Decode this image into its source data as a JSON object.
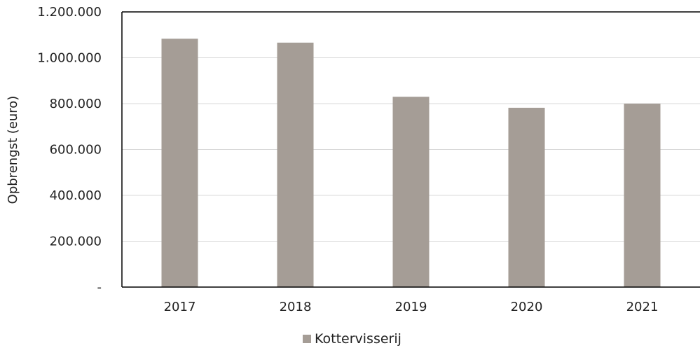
{
  "chart_data": {
    "type": "bar",
    "categories": [
      "2017",
      "2018",
      "2019",
      "2020",
      "2021"
    ],
    "series": [
      {
        "name": "Kottervisserij",
        "values": [
          1083000,
          1066000,
          830000,
          782000,
          800000
        ]
      }
    ],
    "ylabel": "Opbrengst (euro)",
    "ylim": [
      0,
      1200000
    ],
    "yticks": [
      0,
      200000,
      400000,
      600000,
      800000,
      1000000,
      1200000
    ],
    "ytick_labels": [
      "-",
      "200.000",
      "400.000",
      "600.000",
      "800.000",
      "1.000.000",
      "1.200.000"
    ],
    "grid": true,
    "legend_position": "bottom",
    "colors": {
      "bar": "#a59d96",
      "axis": "#000000",
      "grid": "#d9d9d9"
    }
  }
}
